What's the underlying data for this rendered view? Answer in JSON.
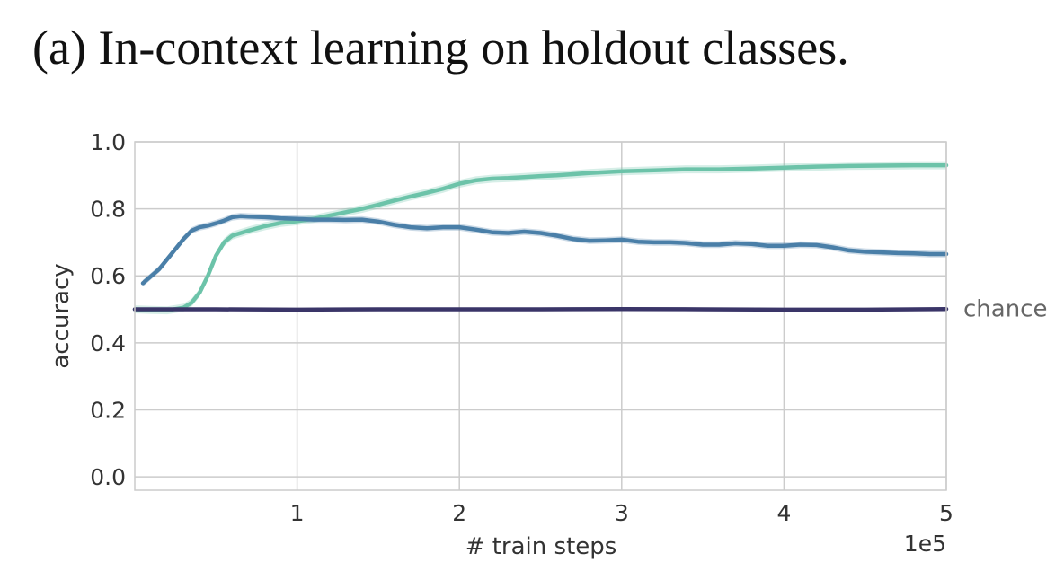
{
  "figure": {
    "caption": "(a) In-context learning on holdout classes."
  },
  "chart_data": {
    "type": "line",
    "xlabel": "# train steps",
    "ylabel": "accuracy",
    "x_offset_label": "1e5",
    "xlim": [
      0.0,
      5.0
    ],
    "ylim": [
      -0.04,
      1.0
    ],
    "x_ticks": [
      1,
      2,
      3,
      4,
      5
    ],
    "y_ticks": [
      0.0,
      0.2,
      0.4,
      0.6,
      0.8,
      1.0
    ],
    "x_tick_labels": [
      "1",
      "2",
      "3",
      "4",
      "5"
    ],
    "y_tick_labels": [
      "0.0",
      "0.2",
      "0.4",
      "0.6",
      "0.8",
      "1.0"
    ],
    "grid": true,
    "annotations": [
      {
        "text": "chance",
        "x": 5.0,
        "y": 0.5
      }
    ],
    "series": [
      {
        "color": "#6cc3a9",
        "band": 0.012,
        "x": [
          0.0,
          0.1,
          0.2,
          0.3,
          0.35,
          0.4,
          0.45,
          0.5,
          0.55,
          0.6,
          0.7,
          0.8,
          0.9,
          1.0,
          1.1,
          1.2,
          1.3,
          1.4,
          1.5,
          1.6,
          1.7,
          1.8,
          1.9,
          2.0,
          2.1,
          2.2,
          2.3,
          2.4,
          2.5,
          2.6,
          2.8,
          3.0,
          3.2,
          3.4,
          3.6,
          3.8,
          4.0,
          4.2,
          4.4,
          4.6,
          4.8,
          5.0
        ],
        "y": [
          0.5,
          0.498,
          0.497,
          0.505,
          0.52,
          0.55,
          0.6,
          0.66,
          0.7,
          0.72,
          0.735,
          0.748,
          0.758,
          0.763,
          0.77,
          0.78,
          0.79,
          0.8,
          0.812,
          0.825,
          0.837,
          0.848,
          0.86,
          0.875,
          0.885,
          0.89,
          0.892,
          0.895,
          0.898,
          0.9,
          0.907,
          0.912,
          0.915,
          0.918,
          0.918,
          0.92,
          0.923,
          0.926,
          0.928,
          0.929,
          0.93,
          0.93
        ]
      },
      {
        "color": "#4a7fa8",
        "band": 0.01,
        "x": [
          0.05,
          0.15,
          0.25,
          0.3,
          0.35,
          0.4,
          0.45,
          0.5,
          0.55,
          0.6,
          0.65,
          0.7,
          0.8,
          0.9,
          1.0,
          1.1,
          1.2,
          1.3,
          1.4,
          1.5,
          1.6,
          1.7,
          1.8,
          1.9,
          2.0,
          2.1,
          2.2,
          2.3,
          2.4,
          2.5,
          2.6,
          2.7,
          2.8,
          2.9,
          3.0,
          3.1,
          3.2,
          3.3,
          3.4,
          3.5,
          3.6,
          3.7,
          3.8,
          3.9,
          4.0,
          4.1,
          4.2,
          4.3,
          4.4,
          4.5,
          4.6,
          4.7,
          4.8,
          4.9,
          5.0
        ],
        "y": [
          0.578,
          0.62,
          0.68,
          0.71,
          0.735,
          0.745,
          0.75,
          0.757,
          0.765,
          0.775,
          0.778,
          0.777,
          0.775,
          0.772,
          0.77,
          0.768,
          0.768,
          0.767,
          0.768,
          0.762,
          0.752,
          0.745,
          0.742,
          0.745,
          0.745,
          0.738,
          0.73,
          0.728,
          0.732,
          0.728,
          0.72,
          0.71,
          0.705,
          0.706,
          0.708,
          0.702,
          0.7,
          0.7,
          0.698,
          0.693,
          0.693,
          0.697,
          0.695,
          0.69,
          0.69,
          0.693,
          0.692,
          0.685,
          0.676,
          0.672,
          0.67,
          0.668,
          0.667,
          0.665,
          0.665
        ]
      },
      {
        "color": "#3a3568",
        "band": 0.004,
        "x": [
          0.0,
          0.5,
          1.0,
          1.5,
          2.0,
          2.5,
          3.0,
          3.5,
          4.0,
          4.5,
          5.0
        ],
        "y": [
          0.5,
          0.5,
          0.499,
          0.5,
          0.5,
          0.5,
          0.501,
          0.5,
          0.499,
          0.499,
          0.501
        ]
      }
    ]
  }
}
